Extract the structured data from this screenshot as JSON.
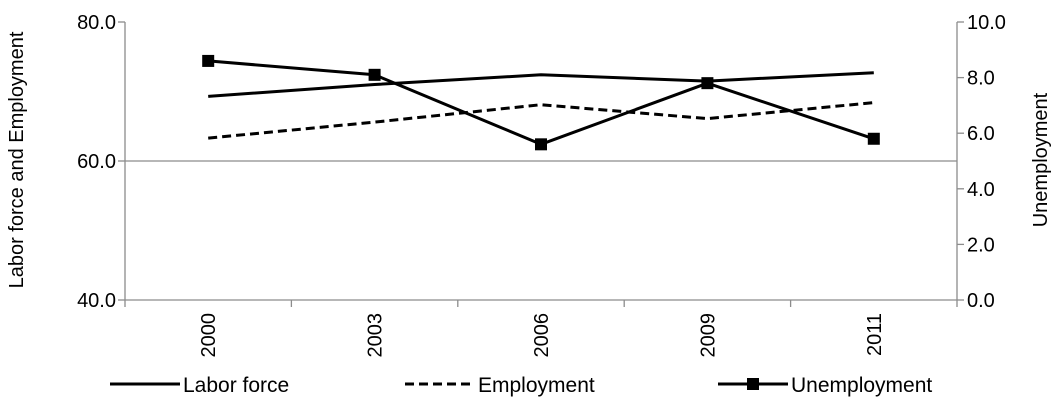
{
  "chart_data": {
    "type": "line",
    "categories": [
      "2000",
      "2003",
      "2006",
      "2009",
      "2011"
    ],
    "series": [
      {
        "name": "Labor force",
        "axis": "left",
        "style": "solid",
        "marker": "none",
        "values": [
          69.3,
          71.0,
          72.4,
          71.5,
          72.7
        ]
      },
      {
        "name": "Employment",
        "axis": "left",
        "style": "dashed",
        "marker": "none",
        "values": [
          63.3,
          65.6,
          68.1,
          66.1,
          68.4
        ]
      },
      {
        "name": "Unemployment",
        "axis": "right",
        "style": "solid",
        "marker": "square",
        "values": [
          8.6,
          8.1,
          5.6,
          7.8,
          5.8
        ]
      }
    ],
    "ylabel": "Labor force and Employment",
    "y2label": "Unemployment",
    "ylim": [
      40,
      80
    ],
    "y2lim": [
      0,
      10
    ],
    "yticks": [
      "40.0",
      "60.0",
      "80.0"
    ],
    "y2ticks": [
      "0.0",
      "2.0",
      "4.0",
      "6.0",
      "8.0",
      "10.0"
    ],
    "gridlines": [
      60
    ],
    "legend_position": "bottom",
    "line_color": "#000000"
  }
}
